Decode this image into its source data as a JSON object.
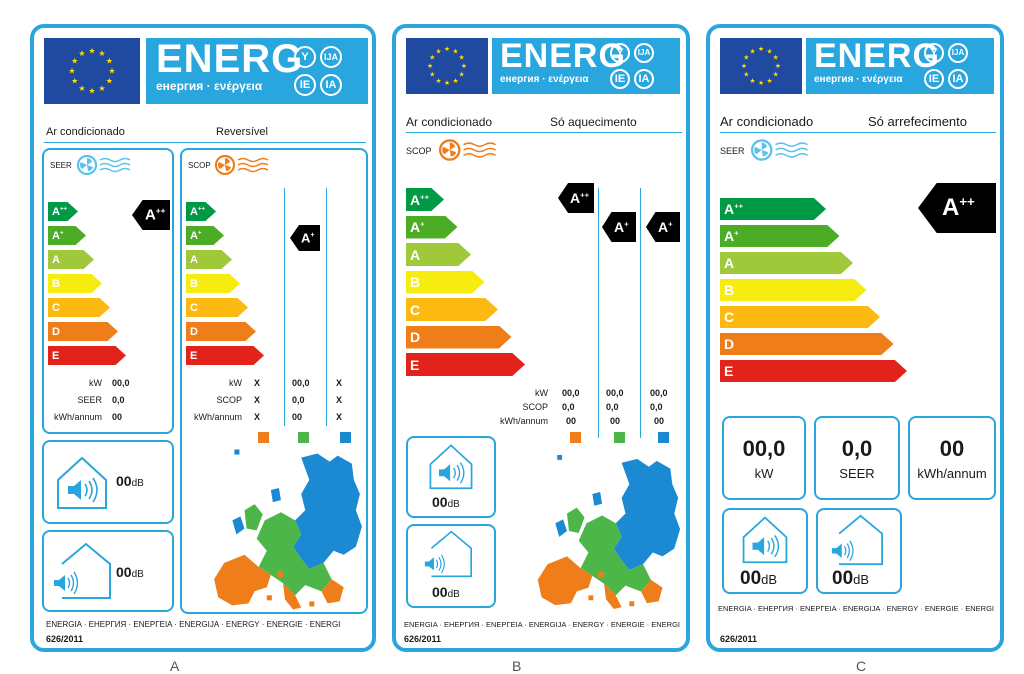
{
  "energy": {
    "word": "ENERG",
    "subtitle": "енергия · ενέργεια",
    "circles": [
      "Y",
      "IJA",
      "IE",
      "IA"
    ]
  },
  "classes": [
    "A",
    "A",
    "A",
    "B",
    "C",
    "D",
    "E"
  ],
  "class_sup": [
    "++",
    "+",
    "",
    "",
    "",
    "",
    ""
  ],
  "colors": {
    "frame": "#29a6de",
    "A++": "#009a44",
    "A+": "#4dac26",
    "A": "#9fc83a",
    "B": "#f7ec0f",
    "C": "#fbb912",
    "D": "#ef7d1a",
    "E": "#e3231b",
    "eu_blue": "#1f4aa0",
    "eu_star": "#ffdd00",
    "zone_orange": "#ef7d1a",
    "zone_green": "#4cb748",
    "zone_blue": "#1c8ad2"
  },
  "labelA": {
    "product": "Ar condicionado",
    "mode": "Reversível",
    "seer_label": "SEER",
    "scop_label": "SCOP",
    "seer_badge": "A",
    "seer_badge_sup": "++",
    "scop_badge": "A",
    "scop_badge_sup": "+",
    "seer_rows": [
      {
        "label": "kW",
        "value": "00,0"
      },
      {
        "label": "SEER",
        "value": "0,0"
      },
      {
        "label": "kWh/annum",
        "value": "00"
      }
    ],
    "scop_rows": [
      {
        "label": "kW",
        "values": [
          "X",
          "00,0",
          "X"
        ]
      },
      {
        "label": "SCOP",
        "values": [
          "X",
          "0,0",
          "X"
        ]
      },
      {
        "label": "kWh/annum",
        "values": [
          "X",
          "00",
          "X"
        ]
      }
    ],
    "noise_indoor": "00",
    "noise_outdoor": "00",
    "unit_db": "dB",
    "footer": "ENERGIA · ЕНЕРГИЯ · ΕΝΕΡΓΕΙΑ · ENERGIJA · ENERGY · ENERGIE · ENERGI",
    "regulation": "626/2011"
  },
  "labelB": {
    "product": "Ar condicionado",
    "mode": "Só aquecimento",
    "scop_label": "SCOP",
    "badges": [
      {
        "letter": "A",
        "sup": "++"
      },
      {
        "letter": "A",
        "sup": "+"
      },
      {
        "letter": "A",
        "sup": "+"
      }
    ],
    "rows": [
      {
        "label": "kW",
        "values": [
          "00,0",
          "00,0",
          "00,0"
        ]
      },
      {
        "label": "SCOP",
        "values": [
          "0,0",
          "0,0",
          "0,0"
        ]
      },
      {
        "label": "kWh/annum",
        "values": [
          "00",
          "00",
          "00"
        ]
      }
    ],
    "noise_indoor": "00",
    "noise_outdoor": "00",
    "unit_db": "dB",
    "footer": "ENERGIA · ЕНЕРГИЯ · ΕΝΕΡΓΕΙΑ · ENERGIJA · ENERGY · ENERGIE · ENERGI",
    "regulation": "626/2011"
  },
  "labelC": {
    "product": "Ar condicionado",
    "mode": "Só arrefecimento",
    "seer_label": "SEER",
    "badge": "A",
    "badge_sup": "++",
    "stats": [
      {
        "value": "00,0",
        "unit": "kW"
      },
      {
        "value": "0,0",
        "unit": "SEER"
      },
      {
        "value": "00",
        "unit": "kWh/annum"
      }
    ],
    "noise_indoor": "00",
    "noise_outdoor": "00",
    "unit_db": "dB",
    "footer": "ENERGIA · ЕНЕРГИЯ · ΕΝΕΡΓΕΙΑ · ENERGIJA · ENERGY · ENERGIE · ENERGI",
    "regulation": "626/2011"
  },
  "captions": [
    "A",
    "B",
    "C"
  ]
}
